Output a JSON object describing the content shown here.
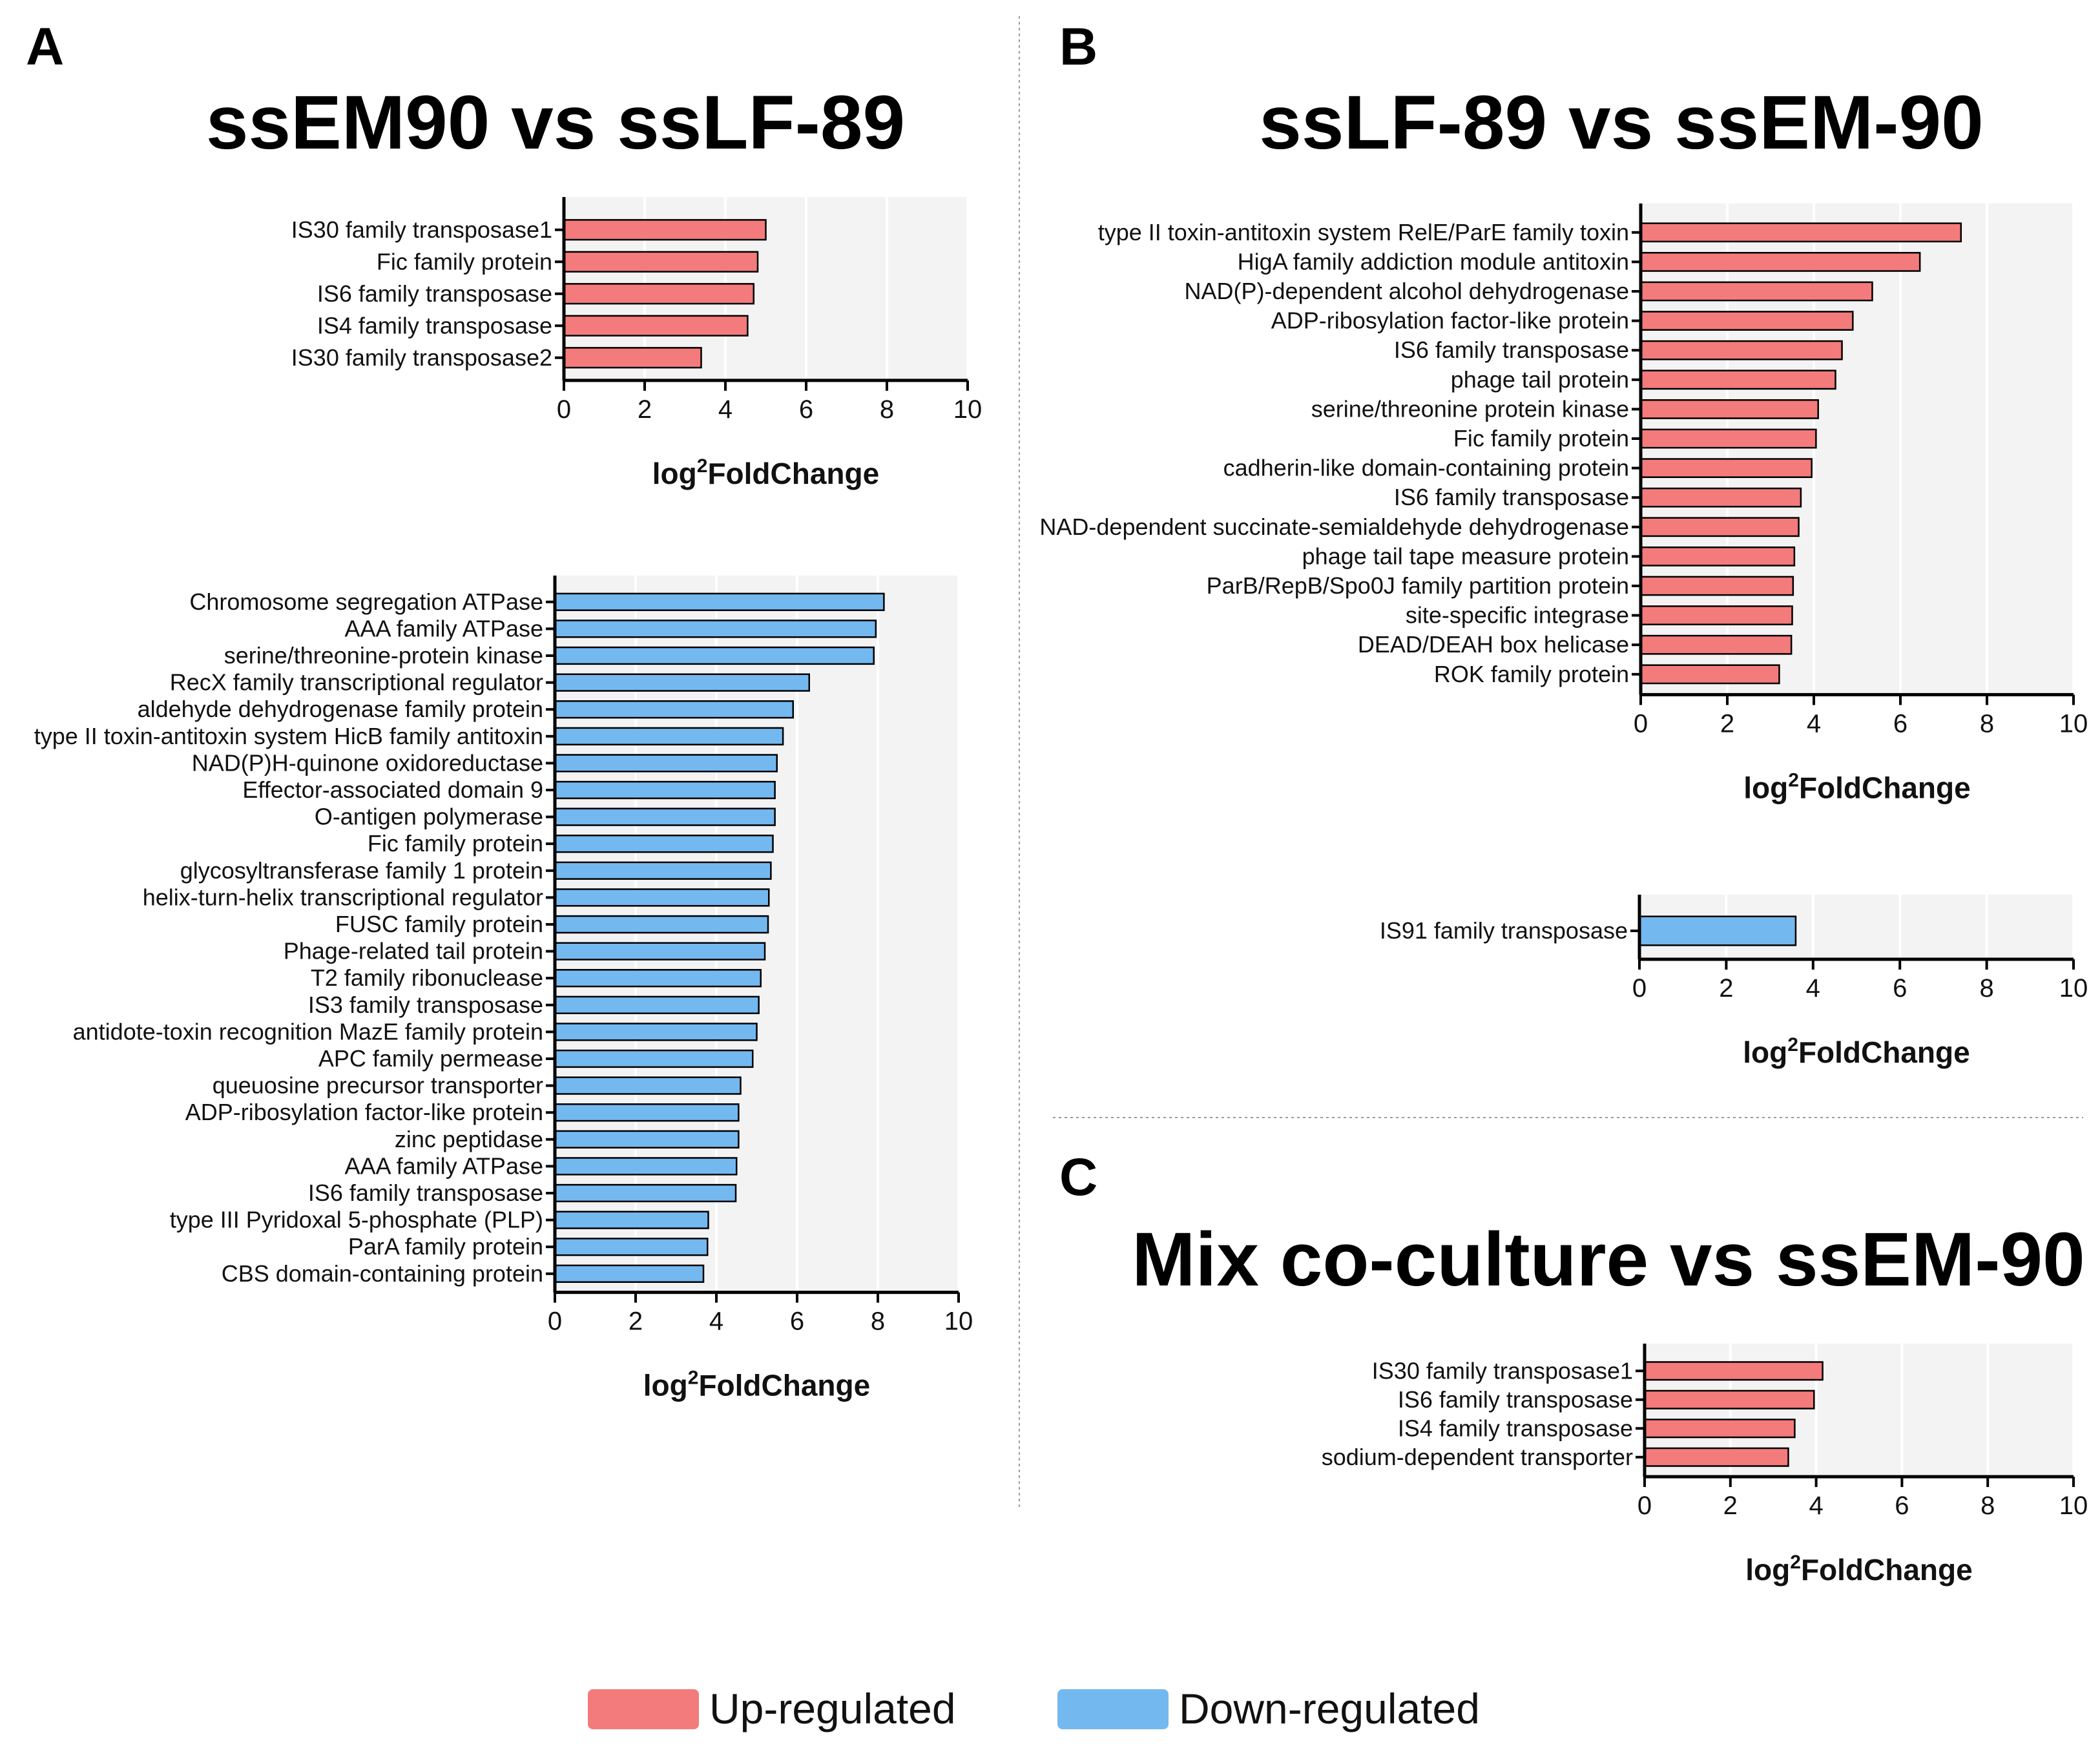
{
  "figure": {
    "panels": [
      {
        "letter": "A",
        "title": "ssEM90 vs ssLF-89"
      },
      {
        "letter": "B",
        "title": "ssLF-89 vs ssEM-90"
      },
      {
        "letter": "C",
        "title": "Mix co-culture vs ssEM-90"
      }
    ],
    "legend": {
      "items": [
        {
          "label": "Up-regulated",
          "color": "#f47b7b"
        },
        {
          "label": "Down-regulated",
          "color": "#74b8f0"
        }
      ]
    },
    "colors": {
      "up": "#f47b7b",
      "down": "#74b8f0"
    }
  },
  "chart_data": [
    {
      "id": "A-up",
      "panel": "A",
      "type": "bar",
      "orientation": "horizontal",
      "regulation": "up",
      "categories": [
        "IS30 family transposase1",
        "Fic family protein",
        "IS6 family transposase",
        "IS4 family transposase",
        "IS30 family transposase2"
      ],
      "values": [
        5.0,
        4.8,
        4.7,
        4.55,
        3.4
      ],
      "xlabel_main": "log",
      "xlabel_sup": "2",
      "xlabel_rest": "FoldChange",
      "xlim": [
        0,
        10
      ],
      "ticks": [
        "0",
        "2",
        "4",
        "6",
        "8",
        "10"
      ]
    },
    {
      "id": "A-down",
      "panel": "A",
      "type": "bar",
      "orientation": "horizontal",
      "regulation": "down",
      "categories": [
        "Chromosome segregation ATPase",
        "AAA family ATPase",
        "serine/threonine-protein kinase",
        "RecX family transcriptional regulator",
        "aldehyde dehydrogenase family protein",
        "type II toxin-antitoxin system HicB family antitoxin",
        "NAD(P)H-quinone oxidoreductase",
        "Effector-associated domain 9",
        "O-antigen polymerase",
        "Fic family protein",
        "glycosyltransferase family 1 protein",
        "helix-turn-helix transcriptional regulator",
        "FUSC family protein",
        "Phage-related tail protein",
        "T2 family ribonuclease",
        "IS3 family transposase",
        "antidote-toxin recognition MazE family protein",
        "APC family permease",
        "queuosine precursor transporter",
        "ADP-ribosylation factor-like protein",
        "zinc peptidase",
        "AAA family ATPase",
        "IS6 family transposase",
        "type III Pyridoxal 5-phosphate (PLP)",
        "ParA family protein",
        "CBS domain-containing protein"
      ],
      "values": [
        8.15,
        7.95,
        7.9,
        6.3,
        5.9,
        5.65,
        5.5,
        5.45,
        5.45,
        5.4,
        5.35,
        5.3,
        5.28,
        5.2,
        5.1,
        5.05,
        5.0,
        4.9,
        4.6,
        4.55,
        4.55,
        4.5,
        4.48,
        3.8,
        3.78,
        3.68
      ],
      "xlabel_main": "log",
      "xlabel_sup": "2",
      "xlabel_rest": "FoldChange",
      "xlim": [
        0,
        10
      ],
      "ticks": [
        "0",
        "2",
        "4",
        "6",
        "8",
        "10"
      ]
    },
    {
      "id": "B-up",
      "panel": "B",
      "type": "bar",
      "orientation": "horizontal",
      "regulation": "up",
      "categories": [
        "type II toxin-antitoxin system RelE/ParE family toxin",
        "HigA family addiction module antitoxin",
        "NAD(P)-dependent alcohol dehydrogenase",
        "ADP-ribosylation factor-like protein",
        "IS6 family transposase",
        "phage tail protein",
        "serine/threonine protein kinase",
        "Fic family protein",
        "cadherin-like domain-containing protein",
        "IS6 family transposase",
        "NAD-dependent succinate-semialdehyde dehydrogenase",
        "phage tail tape measure protein",
        "ParB/RepB/Spo0J family partition protein",
        "site-specific integrase",
        "DEAD/DEAH box helicase",
        "ROK family protein"
      ],
      "values": [
        7.4,
        6.45,
        5.35,
        4.9,
        4.65,
        4.5,
        4.1,
        4.05,
        3.95,
        3.7,
        3.65,
        3.55,
        3.52,
        3.5,
        3.48,
        3.2
      ],
      "xlabel_main": "log",
      "xlabel_sup": "2",
      "xlabel_rest": "FoldChange",
      "xlim": [
        0,
        10
      ],
      "ticks": [
        "0",
        "2",
        "4",
        "6",
        "8",
        "10"
      ]
    },
    {
      "id": "B-down",
      "panel": "B",
      "type": "bar",
      "orientation": "horizontal",
      "regulation": "down",
      "categories": [
        "IS91 family transposase"
      ],
      "values": [
        3.6
      ],
      "xlabel_main": "log",
      "xlabel_sup": "2",
      "xlabel_rest": "FoldChange",
      "xlim": [
        0,
        10
      ],
      "ticks": [
        "0",
        "2",
        "4",
        "6",
        "8",
        "10"
      ]
    },
    {
      "id": "C-up",
      "panel": "C",
      "type": "bar",
      "orientation": "horizontal",
      "regulation": "up",
      "categories": [
        "IS30 family transposase1",
        "IS6 family transposase",
        "IS4 family transposase",
        "sodium-dependent transporter"
      ],
      "values": [
        4.15,
        3.95,
        3.5,
        3.35
      ],
      "xlabel_main": "log",
      "xlabel_sup": "2",
      "xlabel_rest": "FoldChange",
      "xlim": [
        0,
        10
      ],
      "ticks": [
        "0",
        "2",
        "4",
        "6",
        "8",
        "10"
      ]
    }
  ]
}
